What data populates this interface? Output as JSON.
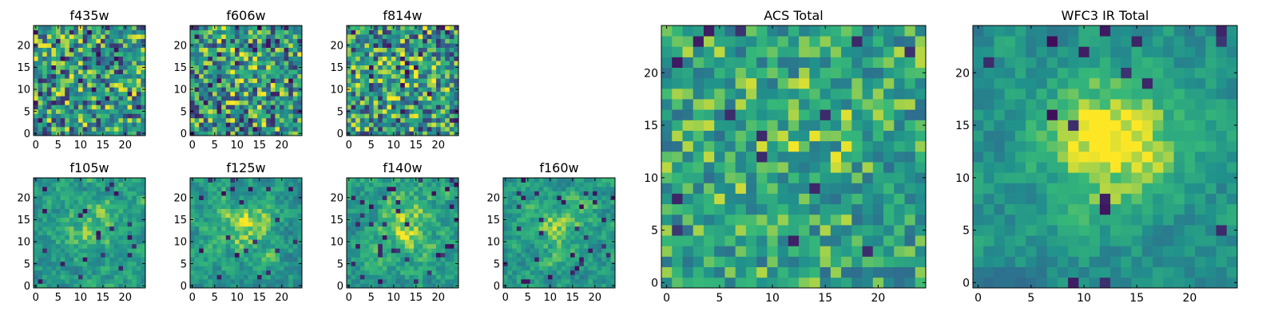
{
  "figure": {
    "grid": false,
    "legend": "none",
    "colormap": [
      "#440154",
      "#31688e",
      "#21918c",
      "#35b779",
      "#fde725"
    ]
  },
  "chart_data": [
    {
      "type": "heatmap",
      "title": "f435w",
      "size": 25,
      "ylim": [
        0,
        24
      ],
      "xticks": [
        "0",
        "5",
        "10",
        "15",
        "20"
      ],
      "yticks": [
        "0",
        "5",
        "10",
        "15",
        "20"
      ],
      "seed": 11,
      "smooth": 0,
      "center": 0.0,
      "base": 0.55,
      "noise": 0.55,
      "dark": 0.06
    },
    {
      "type": "heatmap",
      "title": "f606w",
      "size": 25,
      "ylim": [
        0,
        24
      ],
      "xticks": [
        "0",
        "5",
        "10",
        "15",
        "20"
      ],
      "yticks": [
        "0",
        "5",
        "10",
        "15",
        "20"
      ],
      "seed": 23,
      "smooth": 0,
      "center": 0.1,
      "base": 0.55,
      "noise": 0.55,
      "dark": 0.06
    },
    {
      "type": "heatmap",
      "title": "f814w",
      "size": 25,
      "ylim": [
        0,
        24
      ],
      "xticks": [
        "0",
        "5",
        "10",
        "15",
        "20"
      ],
      "yticks": [
        "0",
        "5",
        "10",
        "15",
        "20"
      ],
      "seed": 37,
      "smooth": 0,
      "center": 0.1,
      "base": 0.55,
      "noise": 0.55,
      "dark": 0.06
    },
    {
      "type": "heatmap",
      "title": "f105w",
      "size": 25,
      "ylim": [
        0,
        24
      ],
      "xticks": [
        "0",
        "5",
        "10",
        "15",
        "20"
      ],
      "yticks": [
        "0",
        "5",
        "10",
        "15",
        "20"
      ],
      "seed": 41,
      "smooth": 1,
      "center": 0.25,
      "base": 0.55,
      "noise": 0.45,
      "dark": 0.04
    },
    {
      "type": "heatmap",
      "title": "f125w",
      "size": 25,
      "ylim": [
        0,
        24
      ],
      "xticks": [
        "0",
        "5",
        "10",
        "15",
        "20"
      ],
      "yticks": [
        "0",
        "5",
        "10",
        "15",
        "20"
      ],
      "seed": 53,
      "smooth": 1,
      "center": 0.3,
      "base": 0.55,
      "noise": 0.45,
      "dark": 0.04
    },
    {
      "type": "heatmap",
      "title": "f140w",
      "size": 25,
      "ylim": [
        0,
        24
      ],
      "xticks": [
        "0",
        "5",
        "10",
        "15",
        "20"
      ],
      "yticks": [
        "0",
        "5",
        "10",
        "15",
        "20"
      ],
      "seed": 67,
      "smooth": 1,
      "center": 0.3,
      "base": 0.58,
      "noise": 0.45,
      "dark": 0.04
    },
    {
      "type": "heatmap",
      "title": "f160w",
      "size": 25,
      "ylim": [
        0,
        24
      ],
      "xticks": [
        "0",
        "5",
        "10",
        "15",
        "20"
      ],
      "yticks": [
        "0",
        "5",
        "10",
        "15",
        "20"
      ],
      "seed": 71,
      "smooth": 1,
      "center": 0.25,
      "base": 0.55,
      "noise": 0.45,
      "dark": 0.05
    },
    {
      "type": "heatmap",
      "title": "ACS Total",
      "size": 25,
      "ylim": [
        0,
        24
      ],
      "xticks": [
        "0",
        "5",
        "10",
        "15",
        "20"
      ],
      "yticks": [
        "0",
        "5",
        "10",
        "15",
        "20"
      ],
      "seed": 83,
      "smooth": 0,
      "center": 0.1,
      "base": 0.6,
      "noise": 0.4,
      "dark": 0.03
    },
    {
      "type": "heatmap",
      "title": "WFC3 IR Total",
      "size": 25,
      "ylim": [
        0,
        24
      ],
      "xticks": [
        "0",
        "5",
        "10",
        "15",
        "20"
      ],
      "yticks": [
        "0",
        "5",
        "10",
        "15",
        "20"
      ],
      "seed": 97,
      "smooth": 1,
      "center": 0.55,
      "base": 0.5,
      "noise": 0.35,
      "dark": 0.03
    }
  ]
}
